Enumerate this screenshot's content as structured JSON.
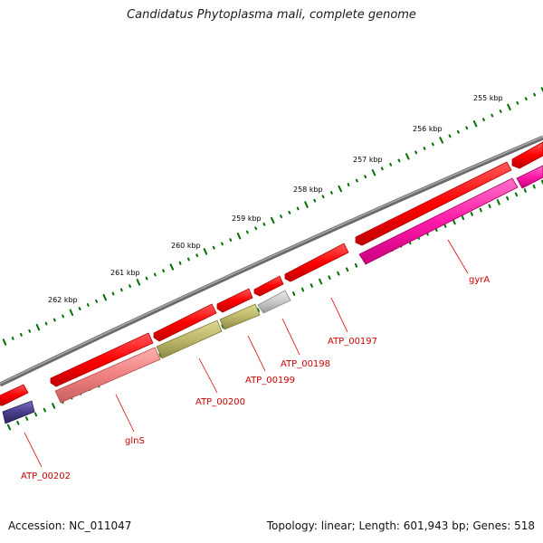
{
  "title": "Candidatus Phytoplasma mali, complete genome",
  "accession_text": "Accession: NC_011047",
  "summary_text": "Topology: linear; Length: 601,943 bp; Genes: 518",
  "colors": {
    "backbone": "#7a7a7a",
    "cds": "#ff0000",
    "tick": "#007000",
    "label": "#cc0000"
  },
  "scale_labels": [
    "255 kbp",
    "256 kbp",
    "257 kbp",
    "258 kbp",
    "259 kbp",
    "260 kbp",
    "261 kbp",
    "262 kbp"
  ],
  "gene_labels": [
    "gyrA",
    "ATP_00197",
    "ATP_00198",
    "ATP_00199",
    "ATP_00200",
    "glnS",
    "ATP_00202"
  ]
}
